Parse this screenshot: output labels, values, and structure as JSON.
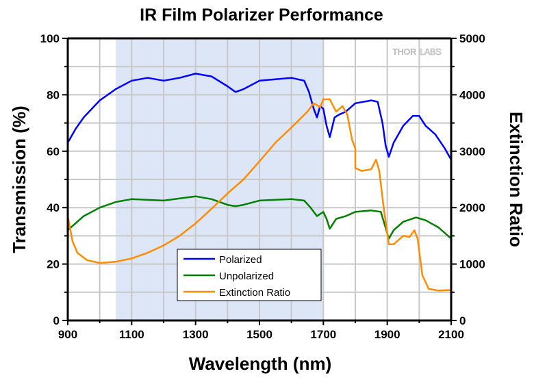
{
  "chart_data": {
    "type": "line",
    "title": "IR Film Polarizer Performance",
    "xlabel": "Wavelength (nm)",
    "ylabel": "Transmission (%)",
    "y2label": "Extinction Ratio",
    "xlim": [
      900,
      2100
    ],
    "ylim": [
      0,
      100
    ],
    "y2lim": [
      0,
      5000
    ],
    "xticks": [
      "900",
      "1100",
      "1300",
      "1500",
      "1700",
      "1900",
      "2100"
    ],
    "xtick_values": [
      900,
      1100,
      1300,
      1500,
      1700,
      1900,
      2100
    ],
    "xminor_values": [
      1000,
      1200,
      1400,
      1600,
      1800,
      2000
    ],
    "yticks": [
      "0",
      "20",
      "40",
      "60",
      "80",
      "100"
    ],
    "ytick_values": [
      0,
      20,
      40,
      60,
      80,
      100
    ],
    "yminor_values": [
      10,
      30,
      50,
      70,
      90
    ],
    "y2ticks": [
      "0",
      "1000",
      "2000",
      "3000",
      "4000",
      "5000"
    ],
    "y2tick_values": [
      0,
      1000,
      2000,
      3000,
      4000,
      5000
    ],
    "y2minor_values": [
      500,
      1500,
      2500,
      3500,
      4500
    ],
    "grid": true,
    "shaded_band": {
      "from": 1050,
      "to": 1700,
      "color": "#dce6f7"
    },
    "watermark": {
      "bold": "THOR",
      "outline": "LABS"
    },
    "legend_position": "bottom-center",
    "series": [
      {
        "name": "Polarized",
        "axis": "left",
        "color": "#0000ff",
        "x": [
          900,
          925,
          950,
          1000,
          1050,
          1100,
          1150,
          1175,
          1200,
          1250,
          1300,
          1350,
          1400,
          1425,
          1450,
          1500,
          1550,
          1600,
          1640,
          1655,
          1670,
          1680,
          1690,
          1700,
          1710,
          1720,
          1735,
          1750,
          1770,
          1800,
          1850,
          1870,
          1885,
          1895,
          1905,
          1920,
          1950,
          1980,
          2000,
          2020,
          2050,
          2080,
          2100
        ],
        "y": [
          63,
          68,
          72,
          78,
          82,
          85,
          86,
          85.5,
          85,
          86,
          87.5,
          86.5,
          83,
          81,
          82,
          85,
          85.5,
          86,
          85,
          81,
          75,
          72,
          76,
          75,
          69,
          65,
          72,
          73,
          74,
          77,
          78,
          77.5,
          70,
          62,
          58,
          63,
          69,
          72.5,
          72.5,
          69,
          66,
          61,
          57
        ]
      },
      {
        "name": "Unpolarized",
        "axis": "left",
        "color": "#008000",
        "x": [
          900,
          950,
          1000,
          1050,
          1100,
          1200,
          1300,
          1350,
          1400,
          1425,
          1450,
          1500,
          1600,
          1640,
          1660,
          1680,
          1700,
          1710,
          1720,
          1740,
          1770,
          1800,
          1850,
          1880,
          1905,
          1920,
          1950,
          1990,
          2020,
          2060,
          2100
        ],
        "y": [
          32,
          37,
          40,
          42,
          43,
          42.5,
          44,
          43,
          41,
          40.5,
          41,
          42.5,
          43,
          42.5,
          40,
          37,
          38.5,
          36,
          32.5,
          36,
          37,
          38.5,
          39,
          38.5,
          29,
          32,
          35,
          36.5,
          35.5,
          33,
          29
        ]
      },
      {
        "name": "Extinction Ratio",
        "axis": "right",
        "color": "#ff8c00",
        "x": [
          900,
          915,
          930,
          960,
          1000,
          1050,
          1100,
          1150,
          1200,
          1250,
          1300,
          1350,
          1400,
          1450,
          1500,
          1550,
          1600,
          1650,
          1670,
          1690,
          1700,
          1720,
          1740,
          1760,
          1775,
          1790,
          1800,
          1800,
          1820,
          1850,
          1865,
          1875,
          1890,
          1905,
          1920,
          1950,
          1970,
          1985,
          1995,
          2010,
          2030,
          2060,
          2100
        ],
        "y": [
          1850,
          1400,
          1200,
          1070,
          1020,
          1040,
          1100,
          1200,
          1330,
          1500,
          1720,
          1980,
          2250,
          2500,
          2820,
          3150,
          3420,
          3700,
          3850,
          3780,
          3920,
          3920,
          3700,
          3800,
          3650,
          3200,
          3050,
          2700,
          2650,
          2680,
          2850,
          2650,
          1950,
          1350,
          1350,
          1500,
          1480,
          1600,
          1450,
          800,
          560,
          530,
          540
        ]
      }
    ]
  }
}
